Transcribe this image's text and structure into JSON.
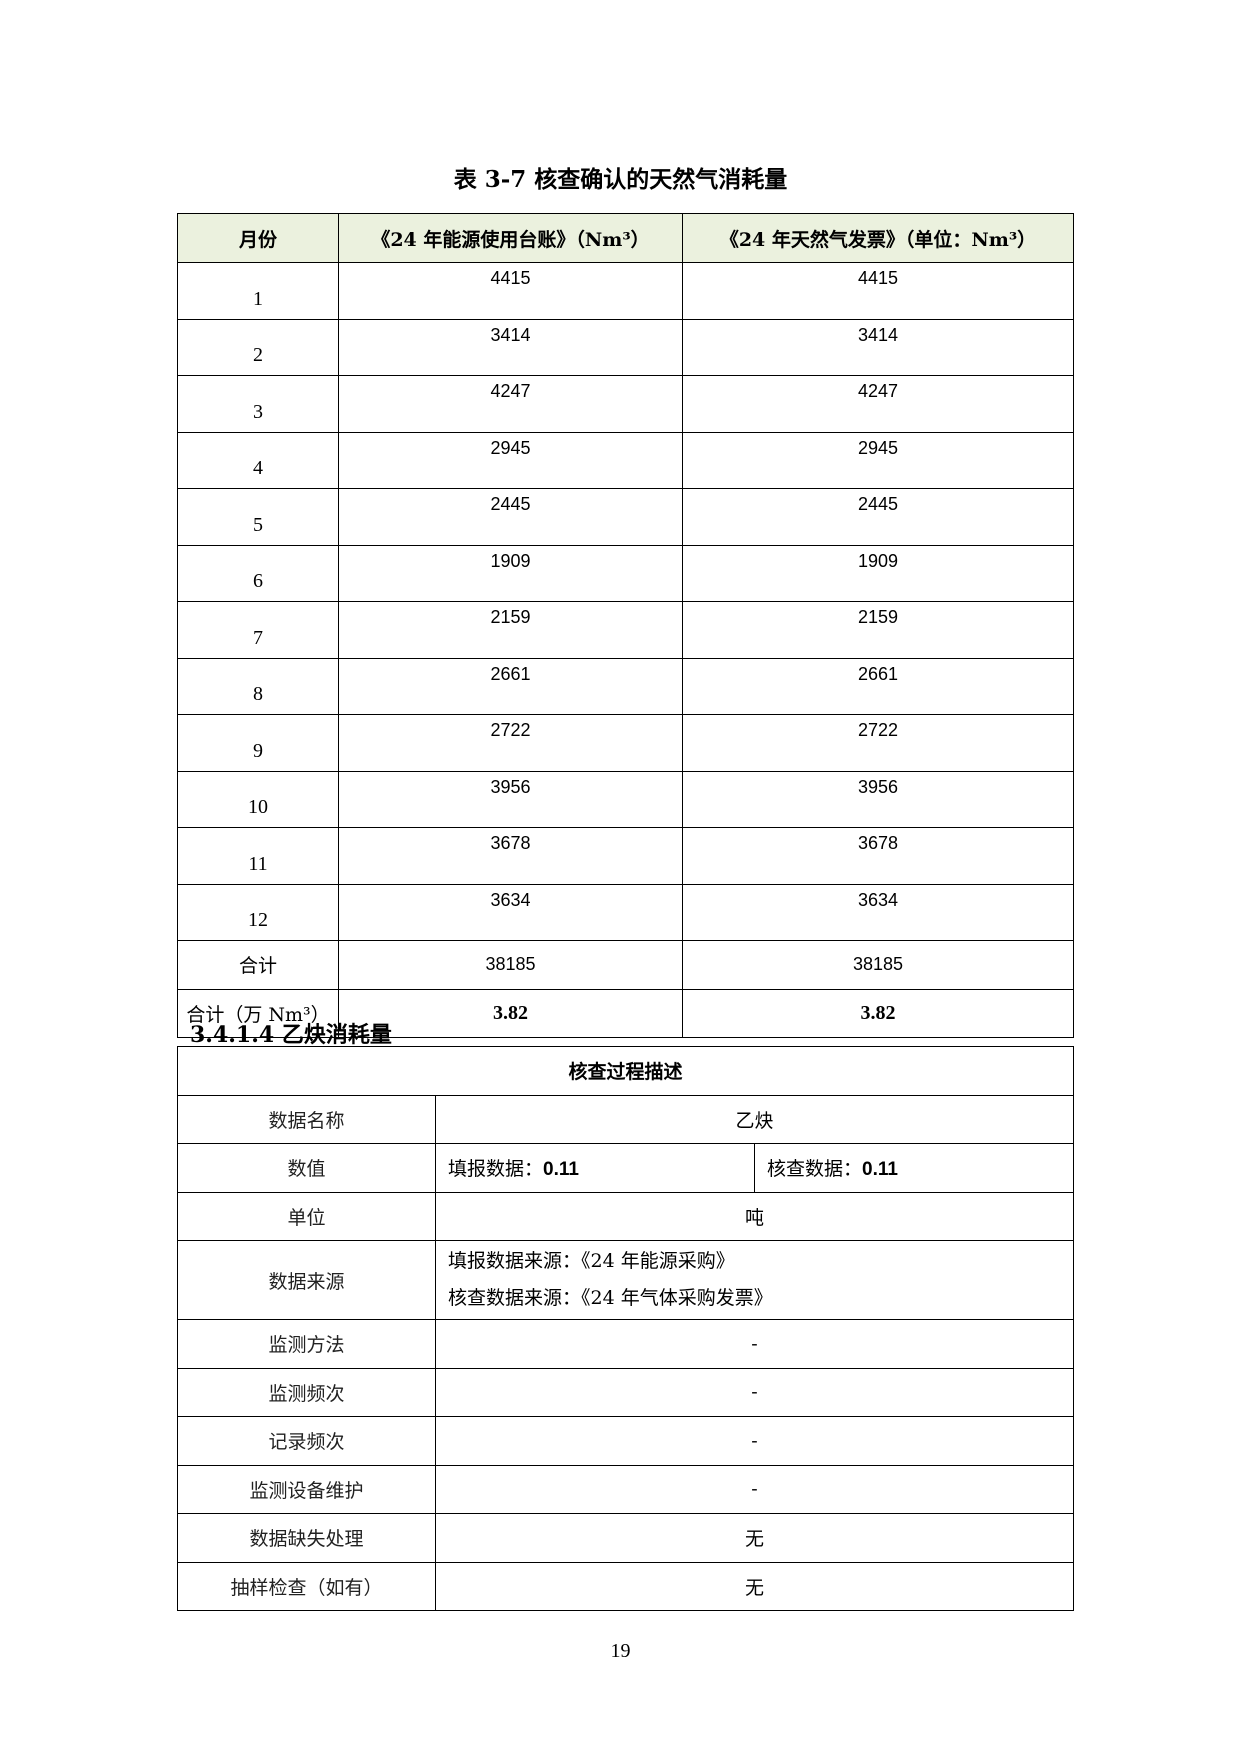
{
  "table1": {
    "title": "表 3-7 核查确认的天然气消耗量",
    "headers": [
      "月份",
      "《24 年能源使用台账》（Nm³）",
      "《24 年天然气发票》（单位：Nm³）"
    ],
    "rows": [
      [
        "1",
        "4415",
        "4415"
      ],
      [
        "2",
        "3414",
        "3414"
      ],
      [
        "3",
        "4247",
        "4247"
      ],
      [
        "4",
        "2945",
        "2945"
      ],
      [
        "5",
        "2445",
        "2445"
      ],
      [
        "6",
        "1909",
        "1909"
      ],
      [
        "7",
        "2159",
        "2159"
      ],
      [
        "8",
        "2661",
        "2661"
      ],
      [
        "9",
        "2722",
        "2722"
      ],
      [
        "10",
        "3956",
        "3956"
      ],
      [
        "11",
        "3678",
        "3678"
      ],
      [
        "12",
        "3634",
        "3634"
      ]
    ],
    "total": [
      "合计",
      "38185",
      "38185"
    ],
    "total_wan": [
      "合计（万 Nm³）",
      "3.82",
      "3.82"
    ],
    "header_bg": "#ebf1de"
  },
  "section": {
    "heading": "3.4.1.4 乙炔消耗量"
  },
  "table2": {
    "caption": "核查过程描述",
    "name_label": "数据名称",
    "name_value": "乙炔",
    "value_label": "数值",
    "reported_label": "填报数据：",
    "reported_value": "0.11",
    "verified_label": "核查数据：",
    "verified_value": "0.11",
    "unit_label": "单位",
    "unit_value": "吨",
    "source_label": "数据来源",
    "source_reported": "填报数据来源：《24 年能源采购》",
    "source_verified": "核查数据来源：《24 年气体采购发票》",
    "rows": [
      [
        "监测方法",
        "-"
      ],
      [
        "监测频次",
        "-"
      ],
      [
        "记录频次",
        "-"
      ],
      [
        "监测设备维护",
        "-"
      ],
      [
        "数据缺失处理",
        "无"
      ],
      [
        "抽样检查（如有）",
        "无"
      ]
    ]
  },
  "page_number": "19"
}
